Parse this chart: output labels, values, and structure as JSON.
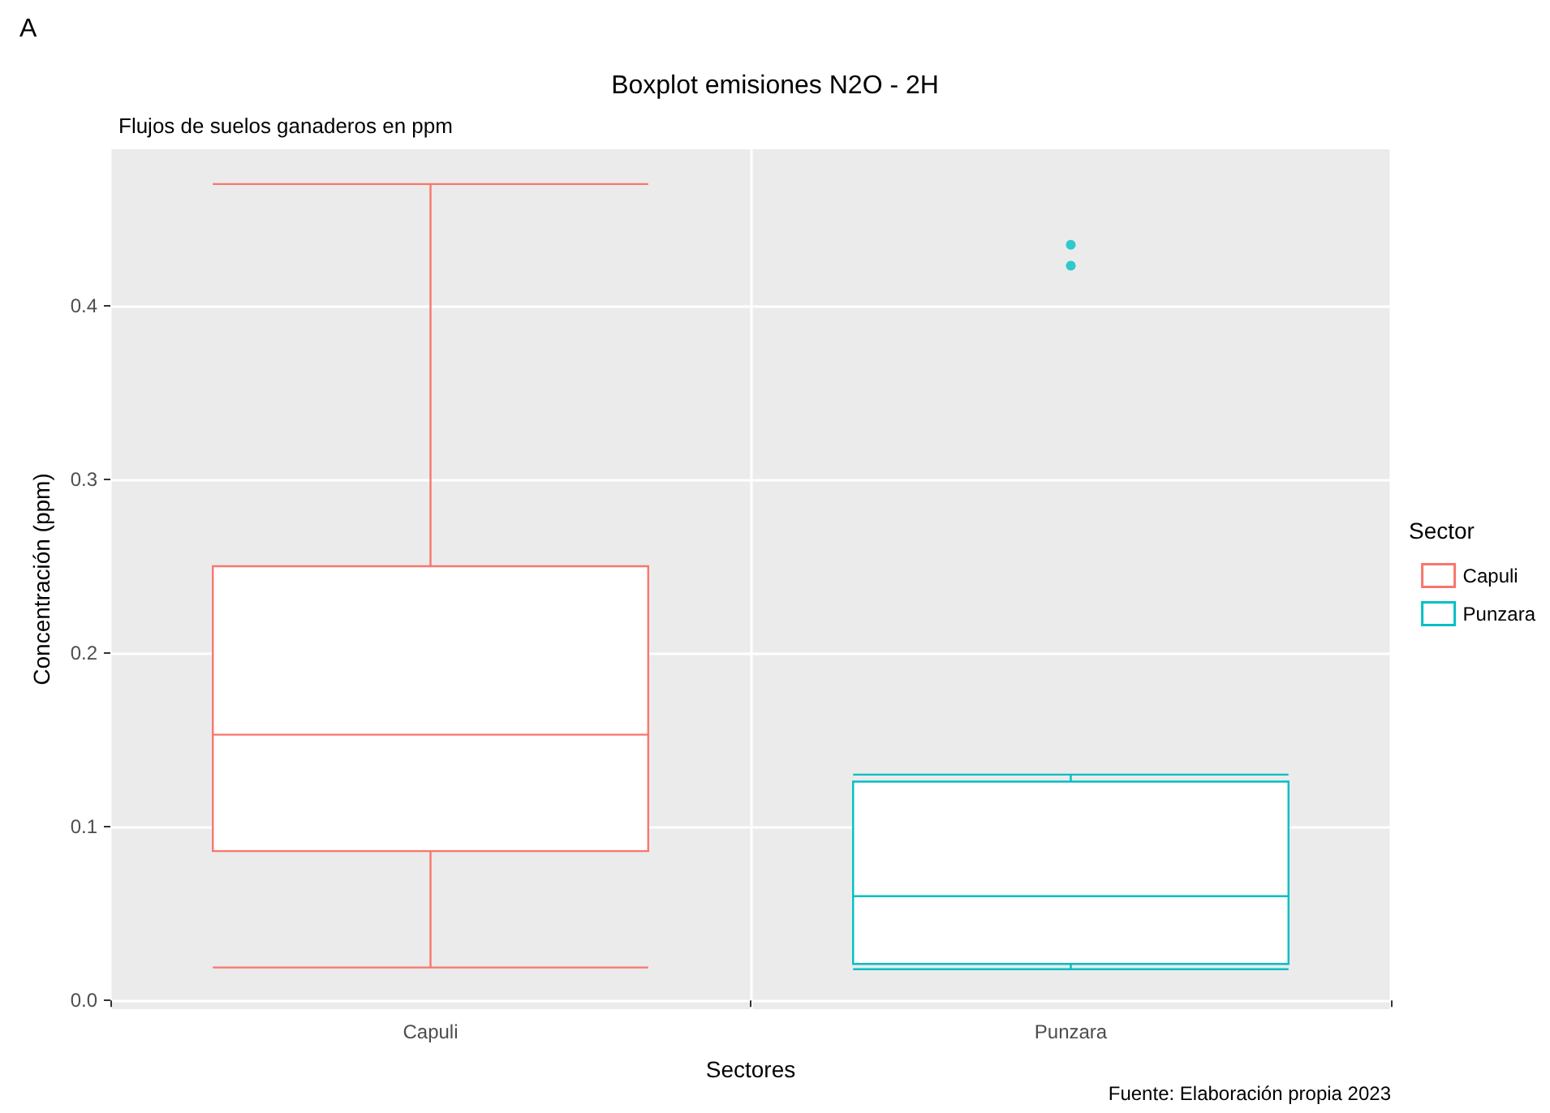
{
  "chart_data": {
    "type": "box",
    "title": "Boxplot emisiones N2O - 2H",
    "subtitle": "Flujos de suelos ganaderos en ppm",
    "xlabel": "Sectores",
    "ylabel": "Concentración (ppm)",
    "legend_title": "Sector",
    "categories": [
      "Capuli",
      "Punzara"
    ],
    "series": [
      {
        "name": "Capuli",
        "color": "#f8766d",
        "boxes": [
          {
            "low": 0.019,
            "q1": 0.086,
            "median": 0.153,
            "q3": 0.25,
            "high": 0.47
          },
          null
        ]
      },
      {
        "name": "Punzara",
        "color": "#00bfc4",
        "boxes": [
          null,
          {
            "low": 0.018,
            "q1": 0.021,
            "median": 0.06,
            "q3": 0.126,
            "high": 0.13,
            "outliers": [
              0.423,
              0.435
            ]
          }
        ]
      }
    ],
    "ylim": [
      -0.005,
      0.49
    ],
    "yticks": [
      {
        "value": 0,
        "label": "0.0"
      },
      0.1,
      0.2,
      0.3,
      0.4
    ],
    "grid": true,
    "legend": "right",
    "annotations": [
      "A",
      "Fuente: Elaboración propia 2023"
    ]
  }
}
